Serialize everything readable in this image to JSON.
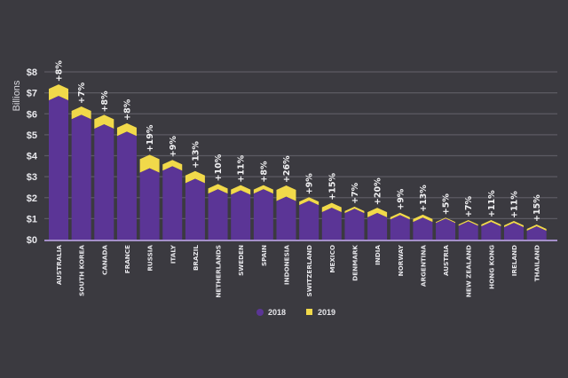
{
  "chart_data": {
    "type": "bar",
    "stacked_overlay": true,
    "title": "",
    "xlabel": "",
    "ylabel": "Billions",
    "ylim": [
      0,
      8
    ],
    "yticks": [
      "$0",
      "$1",
      "$2",
      "$3",
      "$4",
      "$5",
      "$6",
      "$7",
      "$8"
    ],
    "grid": true,
    "legend_position": "bottom-center",
    "categories": [
      "AUSTRALIA",
      "SOUTH KOREA",
      "CANADA",
      "FRANCE",
      "RUSSIA",
      "ITALY",
      "BRAZIL",
      "NETHERLANDS",
      "SWEDEN",
      "SPAIN",
      "INDONESIA",
      "SWITZERLAND",
      "MEXICO",
      "DENMARK",
      "INDIA",
      "NORWAY",
      "ARGENTINA",
      "AUSTRIA",
      "NEW ZEALAND",
      "HONG KONG",
      "IRELAND",
      "THAILAND"
    ],
    "series": [
      {
        "name": "2018",
        "color": "#5b3596",
        "values": [
          6.85,
          5.95,
          5.5,
          5.15,
          3.4,
          3.5,
          2.9,
          2.4,
          2.35,
          2.4,
          2.05,
          1.85,
          1.52,
          1.47,
          1.27,
          1.17,
          1.05,
          1.0,
          0.87,
          0.84,
          0.8,
          0.63
        ]
      },
      {
        "name": "2019",
        "color": "#f1d94a",
        "values": [
          7.4,
          6.35,
          5.95,
          5.55,
          4.05,
          3.8,
          3.27,
          2.65,
          2.6,
          2.6,
          2.58,
          2.02,
          1.75,
          1.57,
          1.52,
          1.28,
          1.19,
          1.05,
          0.93,
          0.93,
          0.89,
          0.72
        ]
      }
    ],
    "annotations": [
      "+8%",
      "+7%",
      "+8%",
      "+8%",
      "+19%",
      "+9%",
      "+13%",
      "+10%",
      "+11%",
      "+8%",
      "+26%",
      "+9%",
      "+15%",
      "+7%",
      "+20%",
      "+9%",
      "+13%",
      "+5%",
      "+7%",
      "+11%",
      "+11%",
      "+15%"
    ]
  }
}
